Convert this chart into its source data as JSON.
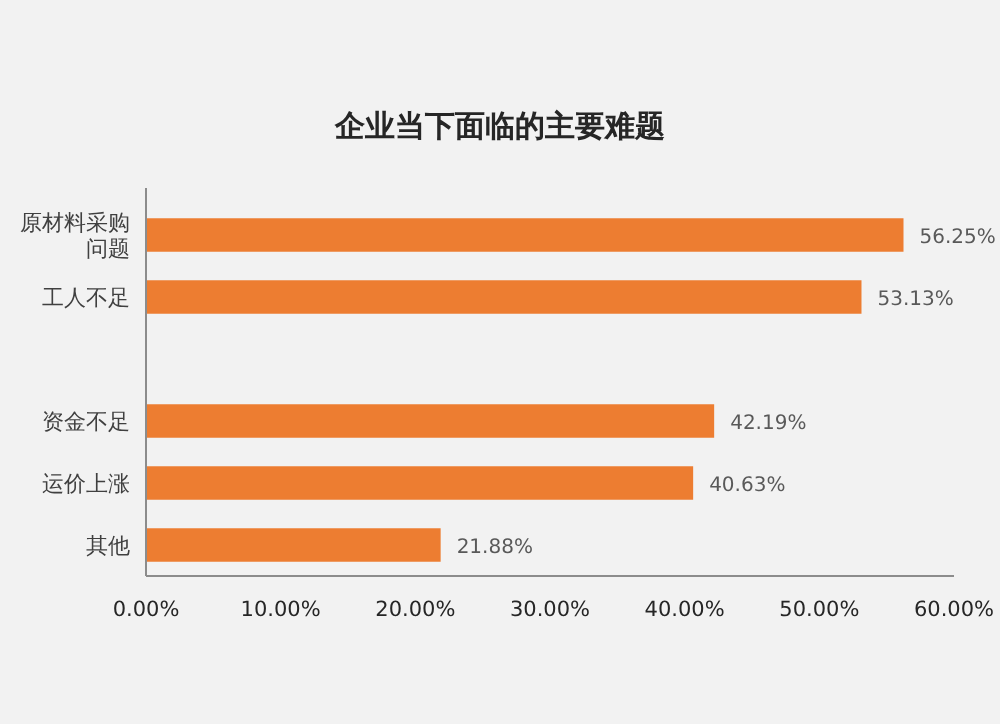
{
  "chart_data": {
    "type": "bar",
    "orientation": "horizontal",
    "title": "企业当下面临的主要难题",
    "categories": [
      "原材料采购问题",
      "工人不足",
      null,
      "资金不足",
      "运价上涨",
      "其他"
    ],
    "values": [
      56.25,
      53.13,
      null,
      42.19,
      40.63,
      21.88
    ],
    "value_labels": [
      "56.25%",
      "53.13%",
      null,
      "42.19%",
      "40.63%",
      "21.88%"
    ],
    "color": "#ed7d31",
    "xlim": [
      0,
      60
    ],
    "xticks": [
      {
        "value": 0,
        "label": "0.00%"
      },
      {
        "value": 10,
        "label": "10.00%"
      },
      {
        "value": 20,
        "label": "20.00%"
      },
      {
        "value": 30,
        "label": "30.00%"
      },
      {
        "value": 40,
        "label": "40.00%"
      },
      {
        "value": 50,
        "label": "50.00%"
      },
      {
        "value": 60,
        "label": "60.00%"
      }
    ]
  }
}
